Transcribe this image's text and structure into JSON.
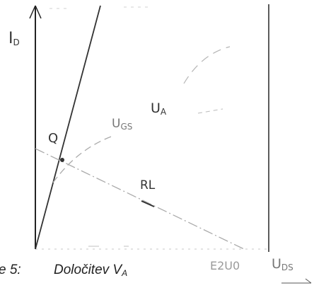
{
  "labels": {
    "id_axis": "I",
    "id_axis_sub": "D",
    "uds_axis": "U",
    "uds_axis_sub": "DS",
    "ugs_curve": "U",
    "ugs_curve_sub": "GS",
    "ua_label": "U",
    "ua_label_sub": "A",
    "q_point": "Q",
    "rl_label": "RL",
    "e_value": "E2U0"
  },
  "caption": {
    "prefix": "e 5:",
    "text": "Določitev V",
    "sub": "A"
  },
  "colors": {
    "axis": "#222222",
    "line": "#333333",
    "faint": "#a8a8a8",
    "text": "#222222"
  }
}
